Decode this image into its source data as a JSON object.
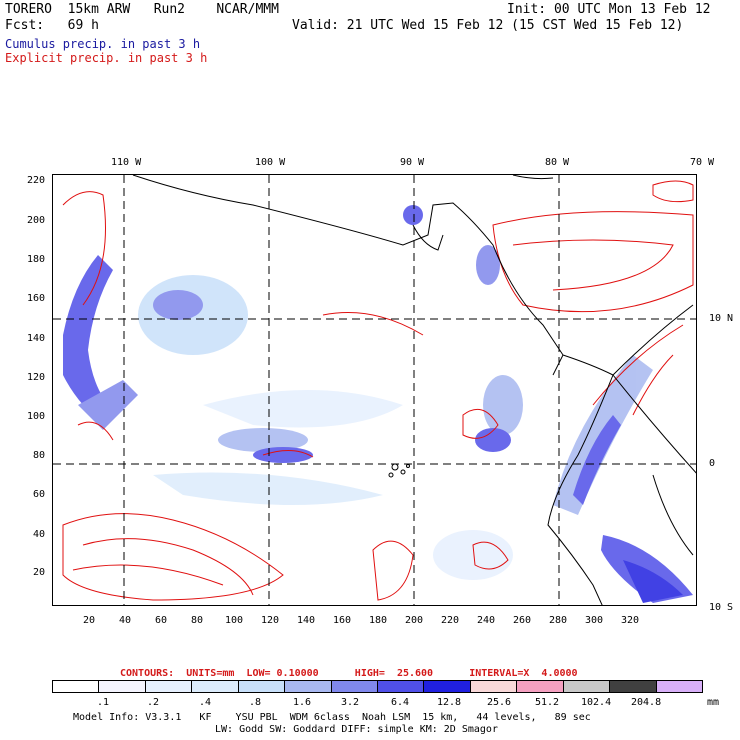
{
  "header": {
    "line1_left": "TORERO  15km ARW   Run2    NCAR/MMM",
    "line1_right": "Init: 00 UTC Mon 13 Feb 12",
    "line2_left": "Fcst:   69 h",
    "line2_right": "Valid: 21 UTC Wed 15 Feb 12 (15 CST Wed 15 Feb 12)",
    "legend_cumulus": "Cumulus precip. in past 3 h",
    "legend_explicit": "Explicit precip. in past 3 h"
  },
  "map": {
    "top_lon_labels": [
      "110 W",
      "100 W",
      "90 W",
      "80 W",
      "70 W"
    ],
    "right_lat_labels": [
      "10 N",
      "0",
      "10 S"
    ],
    "y_axis_labels": [
      "220",
      "200",
      "180",
      "160",
      "140",
      "120",
      "100",
      "80",
      "60",
      "40",
      "20"
    ],
    "x_axis_labels": [
      "20",
      "40",
      "60",
      "80",
      "100",
      "120",
      "140",
      "160",
      "180",
      "200",
      "220",
      "240",
      "260",
      "280",
      "300",
      "320"
    ]
  },
  "contour_info": "CONTOURS:  UNITS=mm  LOW= 0.10000      HIGH=  25.600      INTERVAL=X  4.0000",
  "colorbar": {
    "labels": [
      ".1",
      ".2",
      ".4",
      ".8",
      "1.6",
      "3.2",
      "6.4",
      "12.8",
      "25.6",
      "51.2",
      "102.4",
      "204.8"
    ],
    "unit": "mm",
    "colors": [
      "#ffffff",
      "#f4f4fe",
      "#e6f0fe",
      "#dcecfc",
      "#c8e0fa",
      "#a8b8f0",
      "#8088ec",
      "#5050e8",
      "#2020e0",
      "#f8d8d8",
      "#f4a0c0",
      "#c8c8c8",
      "#404040",
      "#d8b0f8"
    ]
  },
  "footer": {
    "line1": "Model Info: V3.3.1   KF    YSU PBL  WDM 6class  Noah LSM  15 km,   44 levels,   89 sec",
    "line2": "LW: Godd SW: Goddard DIFF: simple KM: 2D Smagor"
  }
}
